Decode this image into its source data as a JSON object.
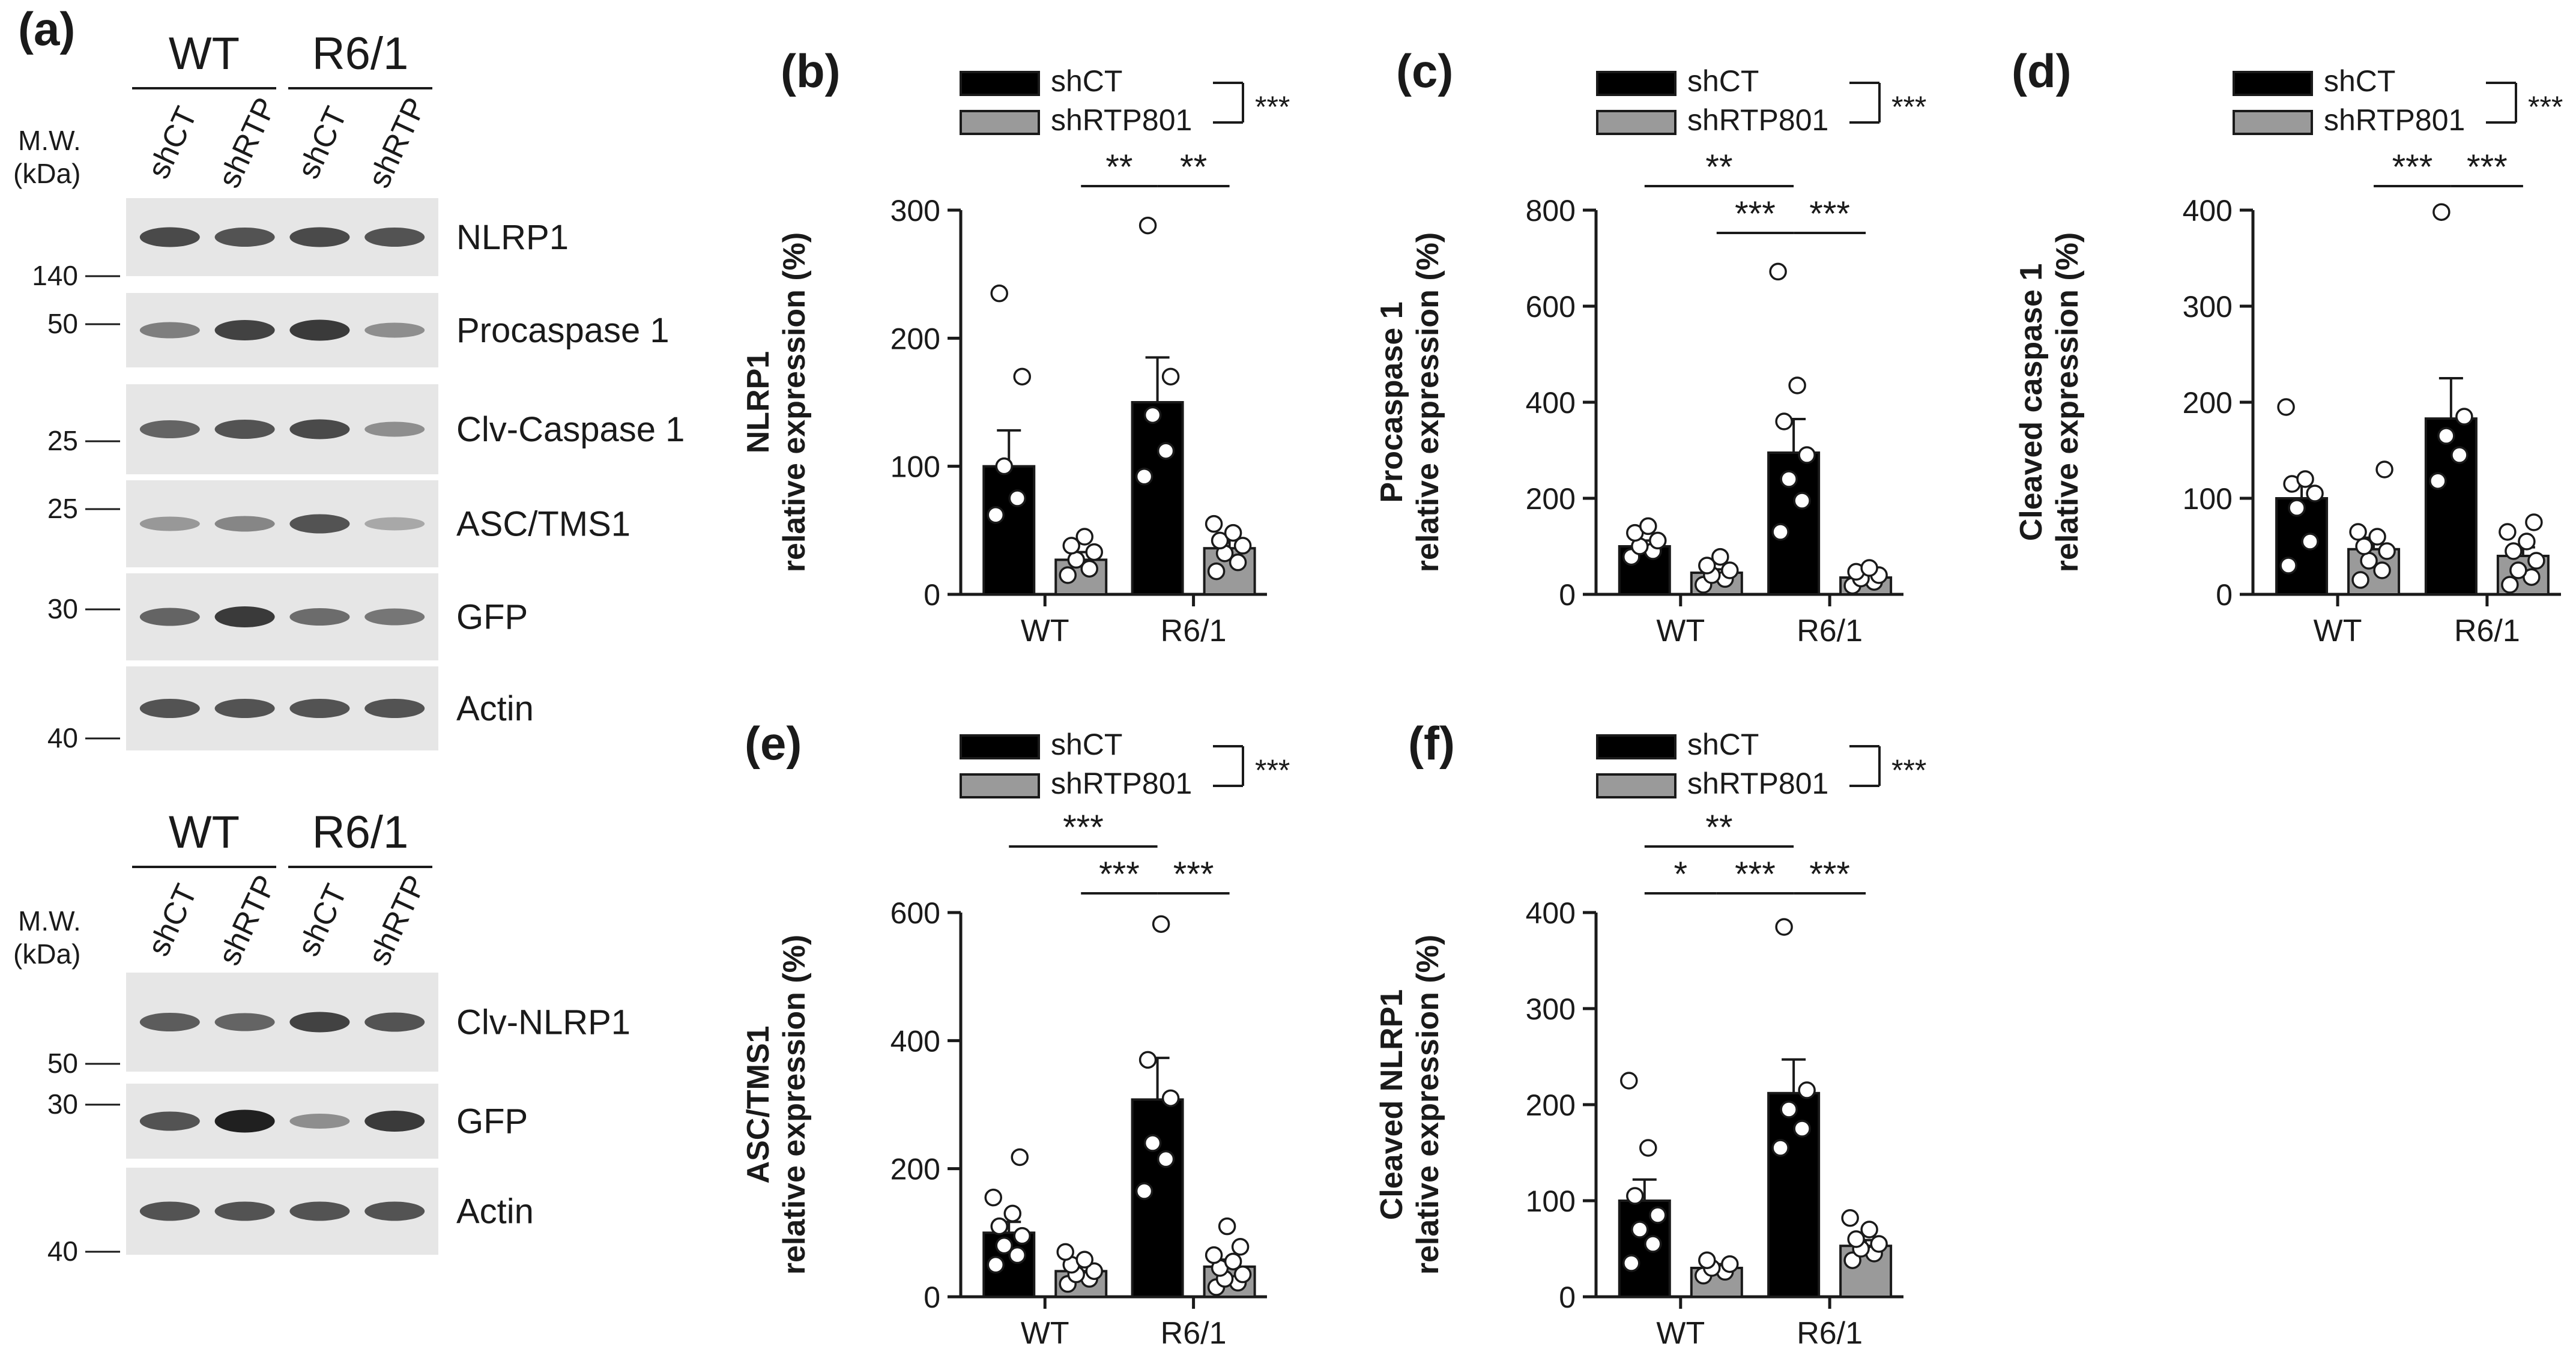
{
  "figure": {
    "legend": {
      "ctrl": "shCT",
      "kd": "shRTP801",
      "interaction_sig": "***"
    },
    "colors": {
      "ctrl_fill": "#000000",
      "kd_fill": "#9a9a9a",
      "dot_fill": "#ffffff",
      "axis": "#1a1a1a"
    }
  },
  "blots": [
    {
      "label": "(a)",
      "groups": [
        "WT",
        "R6/1"
      ],
      "lanes": [
        "shCT",
        "shRTP",
        "shCT",
        "shRTP"
      ],
      "mw_title": [
        "M.W.",
        "(kDa)"
      ],
      "mw_markers": [
        "140",
        "50",
        "25",
        "25",
        "30",
        "40"
      ],
      "strips": [
        {
          "name": "NLRP1",
          "intensity": [
            0.75,
            0.7,
            0.75,
            0.7
          ]
        },
        {
          "name": "Procaspase 1",
          "intensity": [
            0.45,
            0.8,
            0.85,
            0.35
          ]
        },
        {
          "name": "Clv-Caspase 1",
          "intensity": [
            0.6,
            0.7,
            0.75,
            0.35
          ]
        },
        {
          "name": "ASC/TMS1",
          "intensity": [
            0.3,
            0.4,
            0.7,
            0.2
          ]
        },
        {
          "name": "GFP",
          "intensity": [
            0.6,
            0.85,
            0.55,
            0.5
          ]
        },
        {
          "name": "Actin",
          "intensity": [
            0.7,
            0.7,
            0.7,
            0.7
          ]
        }
      ]
    },
    {
      "label": "",
      "groups": [
        "WT",
        "R6/1"
      ],
      "lanes": [
        "shCT",
        "shRTP",
        "shCT",
        "shRTP"
      ],
      "mw_title": [
        "M.W.",
        "(kDa)"
      ],
      "mw_markers": [
        "50",
        "30",
        "40"
      ],
      "strips": [
        {
          "name": "Clv-NLRP1",
          "intensity": [
            0.65,
            0.6,
            0.8,
            0.7
          ]
        },
        {
          "name": "GFP",
          "intensity": [
            0.7,
            1.0,
            0.35,
            0.85
          ]
        },
        {
          "name": "Actin",
          "intensity": [
            0.7,
            0.7,
            0.7,
            0.7
          ]
        }
      ]
    }
  ],
  "chart_data": [
    {
      "panel": "(b)",
      "type": "bar",
      "ylabel": [
        "NLRP1",
        "relative expression (%)"
      ],
      "categories": [
        "WT",
        "R6/1"
      ],
      "ylim": [
        0,
        300
      ],
      "yticks": [
        0,
        100,
        200,
        300
      ],
      "series": [
        {
          "name": "shCT",
          "values": [
            100,
            150
          ],
          "sem": [
            28,
            35
          ],
          "points": [
            [
              62,
              75,
              100,
              170,
              235
            ],
            [
              92,
              112,
              140,
              170,
              288
            ]
          ]
        },
        {
          "name": "shRTP801",
          "values": [
            27,
            36
          ],
          "sem": [
            6,
            7
          ],
          "points": [
            [
              15,
              20,
              27,
              33,
              38,
              45
            ],
            [
              18,
              25,
              32,
              38,
              42,
              48,
              55
            ]
          ]
        }
      ],
      "comparisons": [
        {
          "from": [
            0,
            1
          ],
          "to": [
            1,
            0
          ],
          "label": "**"
        },
        {
          "from": [
            1,
            0
          ],
          "to": [
            1,
            1
          ],
          "label": "**"
        }
      ]
    },
    {
      "panel": "(c)",
      "type": "bar",
      "ylabel": [
        "Procaspase 1",
        "relative expression  (%)"
      ],
      "categories": [
        "WT",
        "R6/1"
      ],
      "ylim": [
        0,
        800
      ],
      "yticks": [
        0,
        200,
        400,
        600,
        800
      ],
      "series": [
        {
          "name": "shCT",
          "values": [
            100,
            295
          ],
          "sem": [
            12,
            70
          ],
          "points": [
            [
              78,
              90,
              100,
              112,
              128,
              142
            ],
            [
              130,
              195,
              240,
              290,
              360,
              435,
              672
            ]
          ]
        },
        {
          "name": "shRTP801",
          "values": [
            45,
            35
          ],
          "sem": [
            7,
            6
          ],
          "points": [
            [
              20,
              32,
              40,
              50,
              60,
              78
            ],
            [
              18,
              26,
              33,
              40,
              47,
              55
            ]
          ]
        }
      ],
      "comparisons": [
        {
          "from": [
            0,
            0
          ],
          "to": [
            1,
            0
          ],
          "label": "**"
        },
        {
          "from": [
            0,
            1
          ],
          "to": [
            1,
            0
          ],
          "label": "***"
        },
        {
          "from": [
            1,
            0
          ],
          "to": [
            1,
            1
          ],
          "label": "***"
        }
      ]
    },
    {
      "panel": "(d)",
      "type": "bar",
      "ylabel": [
        "Cleaved caspase 1",
        "relative expression  (%)"
      ],
      "categories": [
        "WT",
        "R6/1"
      ],
      "ylim": [
        0,
        400
      ],
      "yticks": [
        0,
        100,
        200,
        300,
        400
      ],
      "series": [
        {
          "name": "shCT",
          "values": [
            100,
            183
          ],
          "sem": [
            18,
            42
          ],
          "points": [
            [
              30,
              55,
              90,
              105,
              115,
              120,
              195
            ],
            [
              118,
              145,
              165,
              185,
              398
            ]
          ]
        },
        {
          "name": "shRTP801",
          "values": [
            47,
            40
          ],
          "sem": [
            12,
            9
          ],
          "points": [
            [
              15,
              25,
              35,
              45,
              50,
              60,
              65,
              130
            ],
            [
              10,
              18,
              25,
              35,
              45,
              55,
              65,
              75
            ]
          ]
        }
      ],
      "comparisons": [
        {
          "from": [
            0,
            1
          ],
          "to": [
            1,
            0
          ],
          "label": "***"
        },
        {
          "from": [
            1,
            0
          ],
          "to": [
            1,
            1
          ],
          "label": "***"
        }
      ]
    },
    {
      "panel": "(e)",
      "type": "bar",
      "ylabel": [
        "ASC/TMS1",
        "relative expression (%)"
      ],
      "categories": [
        "WT",
        "R6/1"
      ],
      "ylim": [
        0,
        600
      ],
      "yticks": [
        0,
        200,
        400,
        600
      ],
      "series": [
        {
          "name": "shCT",
          "values": [
            100,
            308
          ],
          "sem": [
            17,
            65
          ],
          "points": [
            [
              50,
              65,
              80,
              95,
              110,
              130,
              155,
              218
            ],
            [
              165,
              215,
              240,
              310,
              370,
              582
            ]
          ]
        },
        {
          "name": "shRTP801",
          "values": [
            40,
            47
          ],
          "sem": [
            9,
            11
          ],
          "points": [
            [
              20,
              28,
              35,
              40,
              50,
              58,
              70
            ],
            [
              15,
              22,
              28,
              35,
              45,
              55,
              65,
              78,
              110
            ]
          ]
        }
      ],
      "comparisons": [
        {
          "from": [
            0,
            0
          ],
          "to": [
            1,
            0
          ],
          "label": "***"
        },
        {
          "from": [
            0,
            1
          ],
          "to": [
            1,
            0
          ],
          "label": "***"
        },
        {
          "from": [
            1,
            0
          ],
          "to": [
            1,
            1
          ],
          "label": "***"
        }
      ]
    },
    {
      "panel": "(f)",
      "type": "bar",
      "ylabel": [
        "Cleaved  NLRP1",
        "relative expression (%)"
      ],
      "categories": [
        "WT",
        "R6/1"
      ],
      "ylim": [
        0,
        400
      ],
      "yticks": [
        0,
        100,
        200,
        300,
        400
      ],
      "series": [
        {
          "name": "shCT",
          "values": [
            100,
            212
          ],
          "sem": [
            22,
            35
          ],
          "points": [
            [
              35,
              55,
              70,
              85,
              105,
              155,
              225
            ],
            [
              155,
              175,
              195,
              215,
              385
            ]
          ]
        },
        {
          "name": "shRTP801",
          "values": [
            30,
            53
          ],
          "sem": [
            4,
            6
          ],
          "points": [
            [
              22,
              26,
              30,
              34,
              38
            ],
            [
              38,
              45,
              50,
              55,
              60,
              70,
              82
            ]
          ]
        }
      ],
      "comparisons": [
        {
          "from": [
            0,
            0
          ],
          "to": [
            1,
            0
          ],
          "label": "**"
        },
        {
          "from": [
            0,
            0
          ],
          "to": [
            0,
            1
          ],
          "label": "*"
        },
        {
          "from": [
            0,
            1
          ],
          "to": [
            1,
            0
          ],
          "label": "***"
        },
        {
          "from": [
            1,
            0
          ],
          "to": [
            1,
            1
          ],
          "label": "***"
        }
      ]
    }
  ]
}
